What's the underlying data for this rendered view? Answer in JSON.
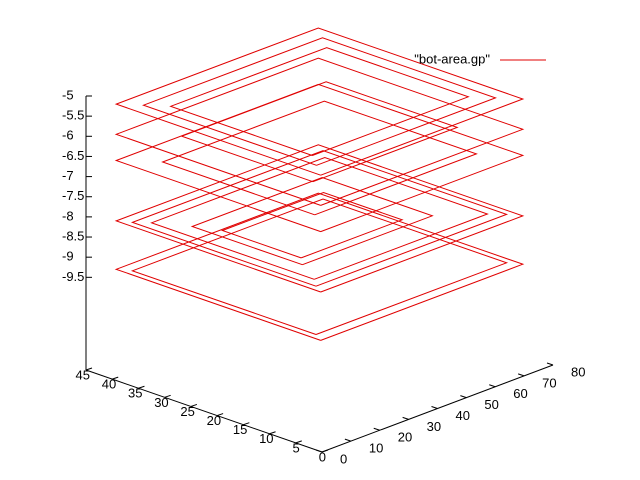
{
  "chart_data": {
    "type": "surface3d",
    "xlim": [
      0,
      80
    ],
    "xticks": [
      0,
      10,
      20,
      30,
      40,
      50,
      60,
      70,
      80
    ],
    "ylim": [
      0,
      45
    ],
    "yticks": [
      0,
      5,
      10,
      15,
      20,
      25,
      30,
      35,
      40,
      45
    ],
    "zlim": [
      -11.8,
      -5
    ],
    "zticks": [
      -5,
      -5.5,
      -6,
      -6.5,
      -7,
      -7.5,
      -8,
      -8.5,
      -9,
      -9.5
    ],
    "legend": "top-right",
    "series": [
      {
        "name": "\"bot-area.gp\"",
        "color": "#e00000",
        "lines": [
          {
            "x": [
              5,
              75,
              75,
              5,
              5
            ],
            "y": [
              3,
              3,
              42,
              42,
              3
            ],
            "z": [
              -5.2,
              -5.2,
              -5.2,
              -5.2,
              -5.2
            ]
          },
          {
            "x": [
              9,
              71,
              71,
              9,
              9
            ],
            "y": [
              6,
              6,
              39,
              39,
              6
            ],
            "z": [
              -5.2,
              -5.2,
              -5.2,
              -5.2,
              -5.2
            ]
          },
          {
            "x": [
              13,
              67,
              67,
              13,
              13
            ],
            "y": [
              9,
              9,
              36,
              36,
              9
            ],
            "z": [
              -5.2,
              -5.2,
              -5.2,
              -5.2,
              -5.2
            ]
          },
          {
            "x": [
              5,
              75,
              75,
              5,
              5
            ],
            "y": [
              3,
              3,
              42,
              42,
              3
            ],
            "z": [
              -5.95,
              -5.95,
              -5.95,
              -5.95,
              -5.95
            ]
          },
          {
            "x": [
              15,
              65,
              65,
              15,
              15
            ],
            "y": [
              10,
              10,
              35,
              35,
              10
            ],
            "z": [
              -5.95,
              -5.95,
              -5.95,
              -5.95,
              -5.95
            ]
          },
          {
            "x": [
              5,
              75,
              75,
              5,
              5
            ],
            "y": [
              3,
              3,
              42,
              42,
              3
            ],
            "z": [
              -6.6,
              -6.6,
              -6.6,
              -6.6,
              -6.6
            ]
          },
          {
            "x": [
              12,
              68,
              68,
              12,
              12
            ],
            "y": [
              8,
              8,
              37,
              37,
              8
            ],
            "z": [
              -6.6,
              -6.6,
              -6.6,
              -6.6,
              -6.6
            ]
          },
          {
            "x": [
              5,
              75,
              75,
              5,
              5
            ],
            "y": [
              3,
              3,
              42,
              42,
              3
            ],
            "z": [
              -8.1,
              -8.1,
              -8.1,
              -8.1,
              -8.1
            ]
          },
          {
            "x": [
              7,
              73,
              73,
              7,
              7
            ],
            "y": [
              5,
              5,
              40,
              40,
              5
            ],
            "z": [
              -8.1,
              -8.1,
              -8.1,
              -8.1,
              -8.1
            ]
          },
          {
            "x": [
              10,
              70,
              70,
              10,
              10
            ],
            "y": [
              7,
              7,
              38,
              38,
              7
            ],
            "z": [
              -8.1,
              -8.1,
              -8.1,
              -8.1,
              -8.1
            ]
          },
          {
            "x": [
              15,
              60,
              60,
              15,
              15
            ],
            "y": [
              12,
              12,
              33,
              33,
              12
            ],
            "z": [
              -8.1,
              -8.1,
              -8.1,
              -8.1,
              -8.1
            ]
          },
          {
            "x": [
              20,
              55,
              55,
              20,
              20
            ],
            "y": [
              15,
              15,
              30,
              30,
              15
            ],
            "z": [
              -8.2,
              -8.2,
              -8.2,
              -8.2,
              -8.2
            ]
          },
          {
            "x": [
              5,
              75,
              75,
              5,
              5
            ],
            "y": [
              3,
              3,
              42,
              42,
              3
            ],
            "z": [
              -9.3,
              -9.3,
              -9.3,
              -9.3,
              -9.3
            ]
          },
          {
            "x": [
              7,
              73,
              73,
              7,
              7
            ],
            "y": [
              5,
              5,
              40,
              40,
              5
            ],
            "z": [
              -9.3,
              -9.3,
              -9.3,
              -9.3,
              -9.3
            ]
          }
        ]
      }
    ]
  }
}
